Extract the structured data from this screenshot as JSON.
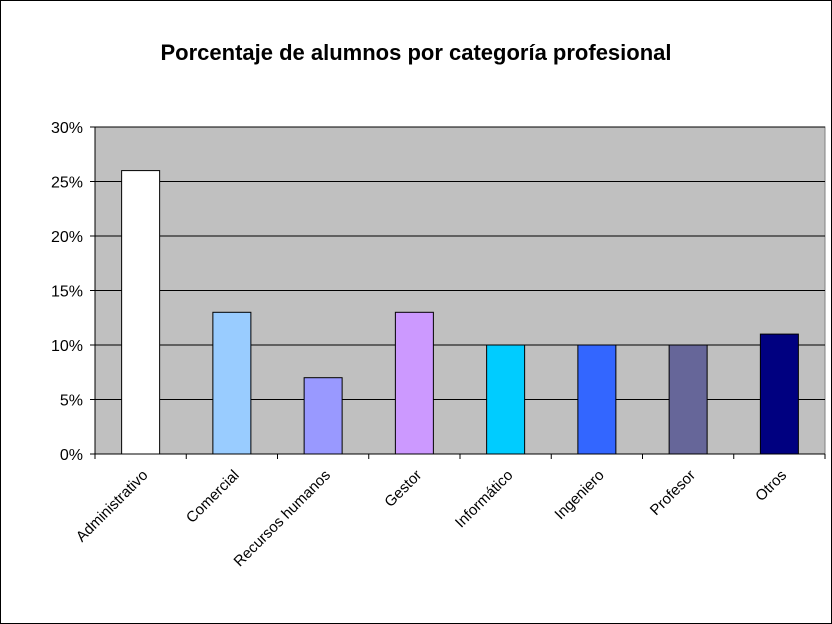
{
  "chart_data": {
    "type": "bar",
    "title": "Porcentaje de alumnos por categoría profesional",
    "categories": [
      "Administrativo",
      "Comercial",
      "Recursos humanos",
      "Gestor",
      "Informático",
      "Ingeniero",
      "Profesor",
      "Otros"
    ],
    "values": [
      26,
      13,
      7,
      13,
      10,
      10,
      10,
      11
    ],
    "colors": [
      "#ffffff",
      "#99ccff",
      "#9999ff",
      "#cc99ff",
      "#00ccff",
      "#3366ff",
      "#666699",
      "#000080"
    ],
    "ylim": [
      0,
      30
    ],
    "yticks": [
      {
        "value": 0,
        "label": "0%"
      },
      {
        "value": 5,
        "label": "5%"
      },
      {
        "value": 10,
        "label": "10%"
      },
      {
        "value": 15,
        "label": "15%"
      },
      {
        "value": 20,
        "label": "20%"
      },
      {
        "value": 25,
        "label": "25%"
      },
      {
        "value": 30,
        "label": "30%"
      }
    ],
    "grid": true
  }
}
